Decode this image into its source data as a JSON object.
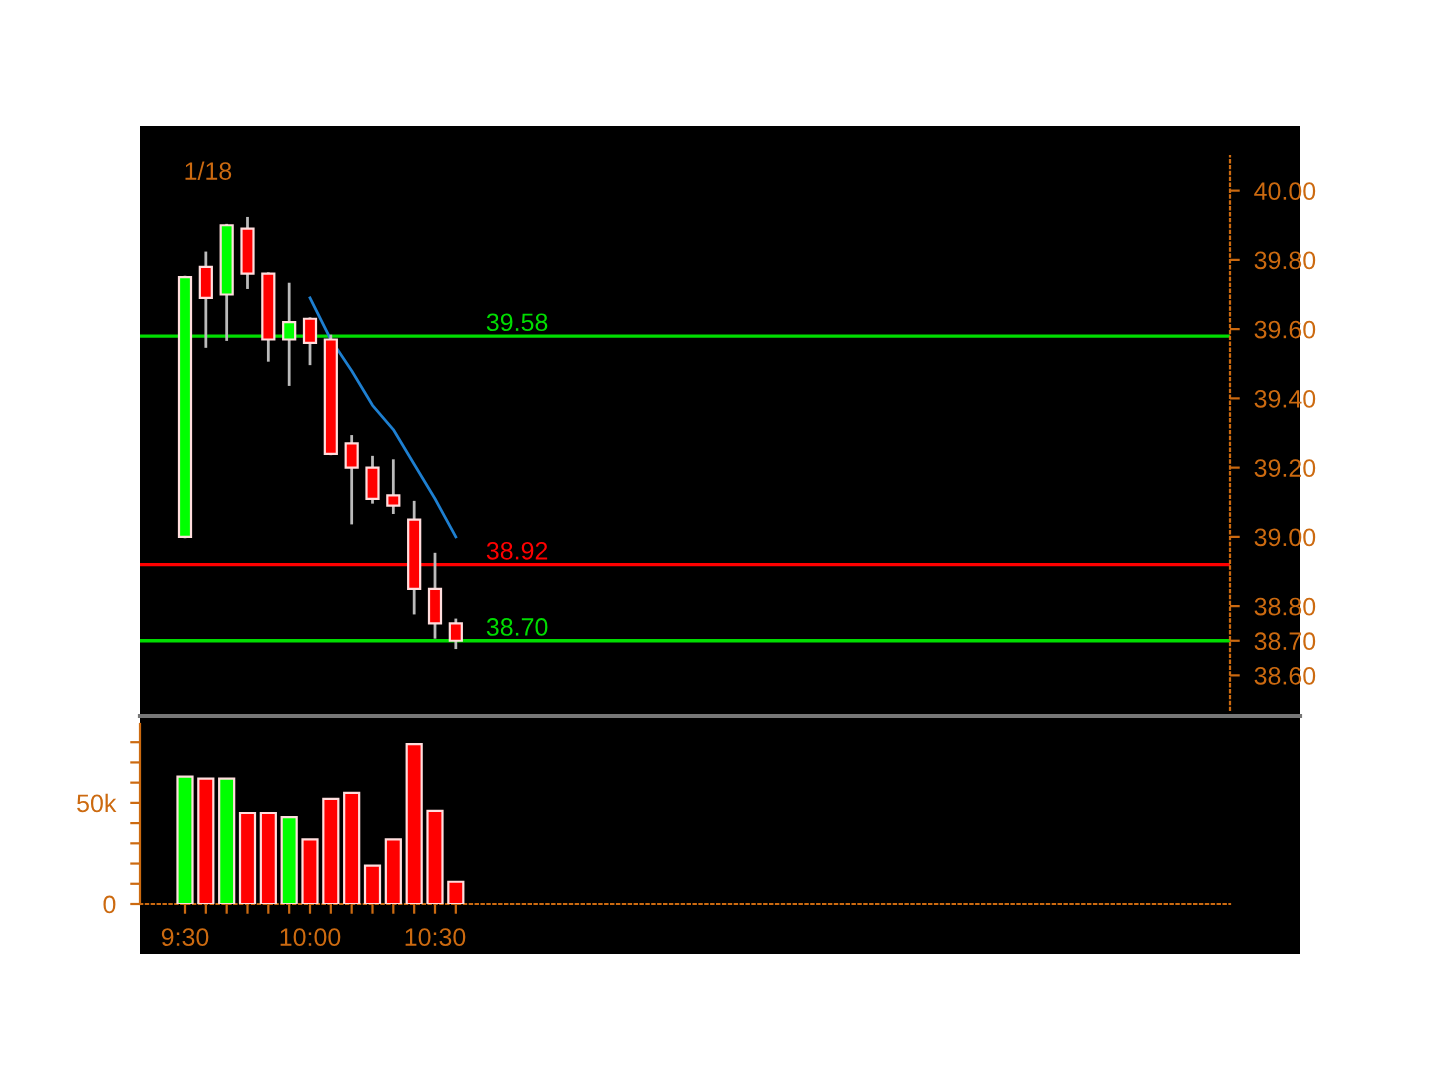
{
  "chart_data": [
    {
      "type": "candlestick",
      "annotations": [
        "1/18"
      ],
      "x": [
        9.5,
        9.5833,
        9.6667,
        9.75,
        9.8333,
        9.9167,
        10,
        10.0833,
        10.1667,
        10.25,
        10.3333,
        10.4167,
        10.5,
        10.5833
      ],
      "ohlc": [
        [
          39.0,
          39.75,
          39.0,
          39.75
        ],
        [
          39.78,
          39.82,
          39.55,
          39.69
        ],
        [
          39.7,
          39.9,
          39.57,
          39.9
        ],
        [
          39.89,
          39.92,
          39.72,
          39.76
        ],
        [
          39.76,
          39.76,
          39.51,
          39.57
        ],
        [
          39.57,
          39.73,
          39.44,
          39.62
        ],
        [
          39.63,
          39.63,
          39.5,
          39.56
        ],
        [
          39.57,
          39.58,
          39.24,
          39.24
        ],
        [
          39.27,
          39.29,
          39.04,
          39.2
        ],
        [
          39.2,
          39.23,
          39.1,
          39.11
        ],
        [
          39.12,
          39.22,
          39.07,
          39.09
        ],
        [
          39.05,
          39.1,
          38.78,
          38.85
        ],
        [
          38.85,
          38.95,
          38.71,
          38.75
        ],
        [
          38.75,
          38.76,
          38.68,
          38.7
        ]
      ],
      "colors": [
        "#00ff00",
        "#ff0000",
        "#00ff00",
        "#ff0000",
        "#ff0000",
        "#00ff00",
        "#ff0000",
        "#ff0000",
        "#ff0000",
        "#ff0000",
        "#ff0000",
        "#ff0000",
        "#ff0000",
        "#ff0000"
      ],
      "series": [
        {
          "type": "line",
          "color": "#1e7fd0",
          "x": [
            10,
            10.0833,
            10.1667,
            10.25,
            10.3333,
            10.4167,
            10.5,
            10.5833
          ],
          "values": [
            39.69,
            39.57,
            39.48,
            39.38,
            39.31,
            39.21,
            39.11,
            39.0
          ]
        }
      ],
      "ref_lines": [
        {
          "axis": "y",
          "value": 39.58,
          "label": "39.58",
          "color": "#00dd00"
        },
        {
          "axis": "y",
          "value": 38.92,
          "label": "38.92",
          "color": "#ff0000"
        },
        {
          "axis": "y",
          "value": 38.7,
          "label": "38.70",
          "color": "#00dd00"
        }
      ],
      "xlim": [
        9.32,
        13.68
      ],
      "ylim": [
        38.5,
        40.1
      ],
      "yticks": [
        {
          "value": 38.6,
          "label": "38.60"
        },
        {
          "value": 38.7,
          "label": "38.70"
        },
        {
          "value": 38.8,
          "label": "38.80"
        },
        {
          "value": 39.0,
          "label": "39.00"
        },
        {
          "value": 39.2,
          "label": "39.20"
        },
        {
          "value": 39.4,
          "label": "39.40"
        },
        {
          "value": 39.6,
          "label": "39.60"
        },
        {
          "value": 39.8,
          "label": "39.80"
        },
        {
          "value": 40.0,
          "label": "40.00"
        }
      ],
      "tick_labels": "y",
      "grid": false,
      "legend": false
    },
    {
      "type": "bar",
      "x": [
        9.5,
        9.5833,
        9.6667,
        9.75,
        9.8333,
        9.9167,
        10,
        10.0833,
        10.1667,
        10.25,
        10.3333,
        10.4167,
        10.5,
        10.5833
      ],
      "values": [
        63000,
        62000,
        62000,
        45000,
        45000,
        43000,
        32000,
        52000,
        55000,
        19000,
        32000,
        79000,
        46000,
        11000
      ],
      "colors": [
        "#00ff00",
        "#ff0000",
        "#00ff00",
        "#ff0000",
        "#ff0000",
        "#00ff00",
        "#ff0000",
        "#ff0000",
        "#ff0000",
        "#ff0000",
        "#ff0000",
        "#ff0000",
        "#ff0000",
        "#ff0000"
      ],
      "xlim": [
        9.32,
        13.68
      ],
      "ylim": [
        0,
        89000
      ],
      "xticks": [
        {
          "value": 9.5,
          "label": "9:30"
        },
        {
          "value": 9.5833,
          "label": null
        },
        {
          "value": 9.6667,
          "label": null
        },
        {
          "value": 9.75,
          "label": null
        },
        {
          "value": 9.8333,
          "label": null
        },
        {
          "value": 9.9167,
          "label": null
        },
        {
          "value": 10,
          "label": "10:00"
        },
        {
          "value": 10.0833,
          "label": null
        },
        {
          "value": 10.1667,
          "label": null
        },
        {
          "value": 10.25,
          "label": null
        },
        {
          "value": 10.3333,
          "label": null
        },
        {
          "value": 10.4167,
          "label": null
        },
        {
          "value": 10.5,
          "label": "10:30"
        },
        {
          "value": 10.5833,
          "label": null
        }
      ],
      "yticks": [
        0,
        {
          "value": 10000,
          "label": null
        },
        {
          "value": 20000,
          "label": null
        },
        {
          "value": 30000,
          "label": null
        },
        {
          "value": 40000,
          "label": null
        },
        {
          "value": 50000,
          "label": "50k"
        },
        {
          "value": 60000,
          "label": null
        },
        {
          "value": 70000,
          "label": null
        },
        {
          "value": 80000,
          "label": null
        }
      ],
      "grid": false,
      "legend": false
    }
  ]
}
